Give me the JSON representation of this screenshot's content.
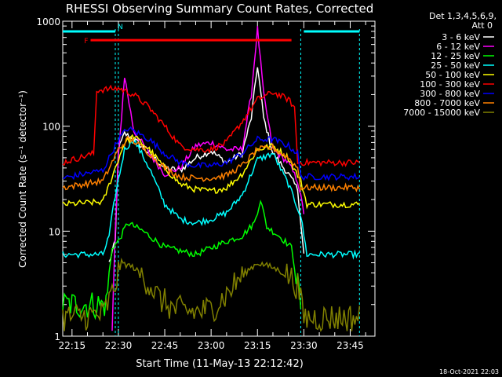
{
  "chart_data": {
    "type": "line",
    "title": "RHESSI Observing Summary Count Rates, Corrected",
    "xlabel": "Start Time (11-May-13 22:12:42)",
    "ylabel": "Corrected Count Rate (s⁻¹ detector⁻¹)",
    "y_scale": "log",
    "ylim": [
      1,
      1000
    ],
    "y_ticks": [
      1,
      10,
      100,
      1000
    ],
    "y_tick_labels": [
      "1",
      "10",
      "100",
      "1000"
    ],
    "x_range": [
      "22:12",
      "23:53"
    ],
    "x_ticks": [
      "22:15",
      "22:30",
      "22:45",
      "23:00",
      "23:15",
      "23:30",
      "23:45"
    ],
    "legend_position": "right",
    "legend_header": [
      "Det 1,3,4,5,6,9,",
      "Att 0"
    ],
    "footer_date": "18-Oct-2021 22:03",
    "flags": [
      {
        "label": "N",
        "color": "#00ffff",
        "start": "22:12",
        "end": "22:29",
        "level": 800
      },
      {
        "label": "N",
        "color": "#00ffff",
        "start": "23:30",
        "end": "23:48",
        "level": 800
      },
      {
        "label": "F",
        "color": "#ff0000",
        "start": "22:21",
        "end": "23:26",
        "level": 660
      }
    ],
    "orbit_markers": [
      "22:29",
      "22:30",
      "23:29",
      "23:48"
    ],
    "series": [
      {
        "name": "3 - 6 keV",
        "color": "#ffffff",
        "times": [
          "22:27",
          "22:29",
          "22:30",
          "22:32",
          "22:35",
          "22:40",
          "22:45",
          "22:50",
          "22:55",
          "23:00",
          "23:05",
          "23:10",
          "23:13",
          "23:15",
          "23:17",
          "23:20",
          "23:25",
          "23:28",
          "23:30"
        ],
        "values": [
          5,
          8,
          60,
          85,
          75,
          55,
          40,
          38,
          50,
          58,
          45,
          55,
          120,
          380,
          120,
          55,
          35,
          25,
          6
        ]
      },
      {
        "name": "6 - 12 keV",
        "color": "#ff00ff",
        "times": [
          "22:28",
          "22:29",
          "22:30",
          "22:32",
          "22:35",
          "22:40",
          "22:45",
          "22:50",
          "22:55",
          "23:00",
          "23:05",
          "23:10",
          "23:13",
          "23:15",
          "23:17",
          "23:20",
          "23:25",
          "23:28",
          "23:30"
        ],
        "values": [
          1,
          10,
          50,
          300,
          90,
          55,
          35,
          40,
          65,
          70,
          60,
          60,
          200,
          850,
          200,
          60,
          45,
          30,
          15
        ]
      },
      {
        "name": "12 - 25 keV",
        "color": "#00ff00",
        "times": [
          "22:12",
          "22:26",
          "22:28",
          "22:30",
          "22:33",
          "22:38",
          "22:45",
          "22:55",
          "23:05",
          "23:10",
          "23:14",
          "23:16",
          "23:18",
          "23:22",
          "23:26",
          "23:29"
        ],
        "values": [
          2,
          2,
          7,
          8,
          12,
          10,
          7,
          6,
          8,
          9,
          12,
          20,
          11,
          9,
          7,
          2
        ]
      },
      {
        "name": "25 - 50 keV",
        "color": "#00ffff",
        "times": [
          "22:12",
          "22:25",
          "22:27",
          "22:29",
          "22:32",
          "22:35",
          "22:40",
          "22:45",
          "22:50",
          "22:55",
          "23:00",
          "23:05",
          "23:10",
          "23:15",
          "23:20",
          "23:25",
          "23:29",
          "23:31",
          "23:35",
          "23:48"
        ],
        "values": [
          6,
          6,
          9,
          22,
          60,
          75,
          40,
          18,
          13,
          12,
          13,
          15,
          22,
          48,
          55,
          28,
          14,
          6,
          6,
          6
        ]
      },
      {
        "name": "50 - 100 keV",
        "color": "#ffff00",
        "times": [
          "22:12",
          "22:25",
          "22:29",
          "22:32",
          "22:35",
          "22:40",
          "22:45",
          "22:50",
          "22:55",
          "23:00",
          "23:05",
          "23:10",
          "23:15",
          "23:20",
          "23:25",
          "23:29",
          "23:31",
          "23:48"
        ],
        "values": [
          18,
          19,
          40,
          70,
          80,
          60,
          40,
          28,
          25,
          24,
          26,
          35,
          60,
          65,
          50,
          30,
          18,
          18
        ]
      },
      {
        "name": "100 - 300 keV",
        "color": "#ff0000",
        "times": [
          "22:12",
          "22:22",
          "22:23",
          "22:30",
          "22:35",
          "22:40",
          "22:45",
          "22:50",
          "22:55",
          "23:00",
          "23:05",
          "23:10",
          "23:15",
          "23:20",
          "23:25",
          "23:27",
          "23:28",
          "23:48"
        ],
        "values": [
          45,
          55,
          220,
          230,
          200,
          150,
          100,
          65,
          60,
          60,
          70,
          110,
          180,
          210,
          180,
          150,
          45,
          45
        ]
      },
      {
        "name": "300 - 800 keV",
        "color": "#0000ff",
        "times": [
          "22:12",
          "22:25",
          "22:30",
          "22:33",
          "22:35",
          "22:40",
          "22:45",
          "22:50",
          "22:55",
          "23:00",
          "23:05",
          "23:10",
          "23:15",
          "23:20",
          "23:25",
          "23:28",
          "23:29",
          "23:48"
        ],
        "values": [
          32,
          38,
          75,
          95,
          90,
          75,
          55,
          45,
          42,
          42,
          45,
          55,
          75,
          75,
          65,
          55,
          33,
          33
        ]
      },
      {
        "name": "800 - 7000 keV",
        "color": "#ff8000",
        "times": [
          "22:12",
          "22:25",
          "22:30",
          "22:33",
          "22:35",
          "22:40",
          "22:45",
          "22:50",
          "22:55",
          "23:00",
          "23:05",
          "23:10",
          "23:15",
          "23:20",
          "23:25",
          "23:28",
          "23:29",
          "23:48"
        ],
        "values": [
          26,
          30,
          60,
          75,
          72,
          55,
          40,
          33,
          32,
          32,
          34,
          42,
          60,
          62,
          50,
          40,
          26,
          26
        ]
      },
      {
        "name": "7000 - 15000 keV",
        "color": "#808000",
        "times": [
          "22:12",
          "22:25",
          "22:28",
          "22:31",
          "22:35",
          "22:40",
          "22:43",
          "22:48",
          "22:55",
          "23:00",
          "23:05",
          "23:10",
          "23:15",
          "23:20",
          "23:25",
          "23:28",
          "23:30",
          "23:48"
        ],
        "values": [
          1.5,
          1.6,
          2.5,
          5,
          4.5,
          3.2,
          2.3,
          1.8,
          1.7,
          1.8,
          2.5,
          3.8,
          5,
          4.5,
          3.8,
          3,
          1.5,
          1.5
        ]
      }
    ]
  }
}
